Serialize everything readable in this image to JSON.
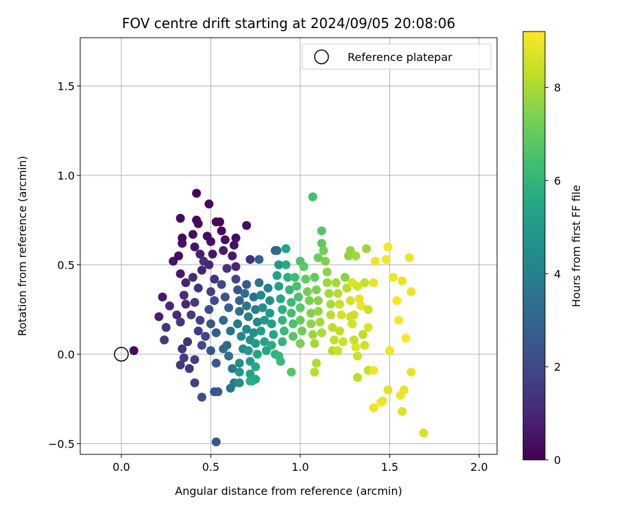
{
  "chart_data": {
    "type": "scatter",
    "title": "FOV centre drift starting at 2024/09/05 20:08:06",
    "xlabel": "Angular distance from reference (arcmin)",
    "ylabel": "Rotation from reference (arcmin)",
    "xlim": [
      -0.23,
      2.1
    ],
    "ylim": [
      -0.56,
      1.77
    ],
    "xticks": [
      0.0,
      0.5,
      1.0,
      1.5,
      2.0
    ],
    "xtick_labels": [
      "0.0",
      "0.5",
      "1.0",
      "1.5",
      "2.0"
    ],
    "yticks": [
      -0.5,
      0.0,
      0.5,
      1.0,
      1.5
    ],
    "ytick_labels": [
      "−0.5",
      "0.0",
      "0.5",
      "1.0",
      "1.5"
    ],
    "grid": true,
    "legend": {
      "location": "top-right",
      "entries": [
        {
          "label": "Reference platepar",
          "marker": "open-circle",
          "x": 0.0,
          "y": 0.0
        }
      ]
    },
    "colorbar": {
      "label": "Hours from first FF file",
      "colormap": "viridis",
      "range": [
        0,
        9.2
      ],
      "ticks": [
        0,
        2,
        4,
        6,
        8
      ],
      "tick_labels": [
        "0",
        "2",
        "4",
        "6",
        "8"
      ]
    },
    "points_format": [
      "x",
      "y",
      "hours"
    ],
    "points": [
      [
        0.07,
        0.02,
        0.3
      ],
      [
        0.23,
        0.32,
        0.6
      ],
      [
        0.21,
        0.21,
        0.8
      ],
      [
        0.25,
        0.15,
        1.4
      ],
      [
        0.24,
        0.08,
        1.6
      ],
      [
        0.27,
        0.27,
        1.0
      ],
      [
        0.29,
        0.52,
        0.5
      ],
      [
        0.33,
        0.76,
        0.3
      ],
      [
        0.34,
        0.65,
        0.2
      ],
      [
        0.34,
        0.62,
        0.4
      ],
      [
        0.32,
        0.55,
        0.3
      ],
      [
        0.33,
        0.45,
        0.6
      ],
      [
        0.36,
        0.4,
        0.9
      ],
      [
        0.35,
        0.33,
        1.2
      ],
      [
        0.36,
        0.28,
        1.0
      ],
      [
        0.31,
        0.22,
        1.1
      ],
      [
        0.33,
        0.18,
        1.5
      ],
      [
        0.34,
        0.03,
        1.4
      ],
      [
        0.33,
        -0.06,
        1.5
      ],
      [
        0.35,
        -0.02,
        1.6
      ],
      [
        0.37,
        0.07,
        1.3
      ],
      [
        0.38,
        -0.08,
        1.5
      ],
      [
        0.41,
        -0.16,
        1.7
      ],
      [
        0.42,
        0.9,
        0.1
      ],
      [
        0.42,
        0.75,
        0.2
      ],
      [
        0.43,
        0.73,
        0.3
      ],
      [
        0.4,
        0.67,
        0.4
      ],
      [
        0.41,
        0.6,
        0.5
      ],
      [
        0.44,
        0.56,
        0.8
      ],
      [
        0.46,
        0.52,
        1.2
      ],
      [
        0.45,
        0.47,
        0.9
      ],
      [
        0.4,
        0.43,
        1.1
      ],
      [
        0.43,
        0.37,
        1.3
      ],
      [
        0.41,
        0.29,
        1.5
      ],
      [
        0.39,
        0.22,
        1.6
      ],
      [
        0.44,
        0.19,
        1.8
      ],
      [
        0.43,
        0.13,
        1.6
      ],
      [
        0.45,
        0.05,
        2.0
      ],
      [
        0.41,
        -0.03,
        1.7
      ],
      [
        0.47,
        0.1,
        1.9
      ],
      [
        0.49,
        0.84,
        0.2
      ],
      [
        0.48,
        0.66,
        0.3
      ],
      [
        0.5,
        0.63,
        0.4
      ],
      [
        0.51,
        0.56,
        0.6
      ],
      [
        0.49,
        0.5,
        1.0
      ],
      [
        0.52,
        0.42,
        1.4
      ],
      [
        0.5,
        0.35,
        1.8
      ],
      [
        0.52,
        0.3,
        2.1
      ],
      [
        0.49,
        0.25,
        2.2
      ],
      [
        0.5,
        0.17,
        2.4
      ],
      [
        0.53,
        0.12,
        2.6
      ],
      [
        0.5,
        0.02,
        2.3
      ],
      [
        0.53,
        -0.05,
        2.5
      ],
      [
        0.52,
        -0.21,
        2.4
      ],
      [
        0.54,
        -0.21,
        2.6
      ],
      [
        0.45,
        -0.24,
        2.2
      ],
      [
        0.53,
        -0.49,
        2.5
      ],
      [
        0.53,
        0.74,
        0.2
      ],
      [
        0.55,
        0.74,
        0.2
      ],
      [
        0.56,
        0.69,
        0.3
      ],
      [
        0.58,
        0.64,
        0.4
      ],
      [
        0.57,
        0.58,
        0.7
      ],
      [
        0.59,
        0.48,
        1.4
      ],
      [
        0.56,
        0.39,
        2.0
      ],
      [
        0.58,
        0.32,
        2.4
      ],
      [
        0.6,
        0.26,
        2.8
      ],
      [
        0.57,
        0.19,
        3.1
      ],
      [
        0.61,
        0.13,
        3.4
      ],
      [
        0.59,
        0.05,
        3.0
      ],
      [
        0.57,
        0.03,
        3.2
      ],
      [
        0.6,
        -0.01,
        3.3
      ],
      [
        0.62,
        -0.08,
        3.6
      ],
      [
        0.63,
        -0.16,
        3.8
      ],
      [
        0.61,
        -0.19,
        3.5
      ],
      [
        0.64,
        0.65,
        0.3
      ],
      [
        0.63,
        0.61,
        0.4
      ],
      [
        0.62,
        0.55,
        0.6
      ],
      [
        0.64,
        0.49,
        1.0
      ],
      [
        0.64,
        0.42,
        1.9
      ],
      [
        0.65,
        0.36,
        2.5
      ],
      [
        0.66,
        0.3,
        3.0
      ],
      [
        0.66,
        0.24,
        3.4
      ],
      [
        0.65,
        0.17,
        3.8
      ],
      [
        0.67,
        0.1,
        4.2
      ],
      [
        0.68,
        0.03,
        4.4
      ],
      [
        0.66,
        -0.05,
        4.6
      ],
      [
        0.66,
        -0.1,
        4.8
      ],
      [
        0.66,
        -0.16,
        4.5
      ],
      [
        0.69,
        0.34,
        3.3
      ],
      [
        0.7,
        0.27,
        3.6
      ],
      [
        0.71,
        0.21,
        4.0
      ],
      [
        0.7,
        0.14,
        4.3
      ],
      [
        0.72,
        0.08,
        4.6
      ],
      [
        0.71,
        0.02,
        4.9
      ],
      [
        0.72,
        -0.04,
        5.1
      ],
      [
        0.72,
        -0.11,
        5.3
      ],
      [
        0.73,
        -0.15,
        5.5
      ],
      [
        0.7,
        0.72,
        0.4
      ],
      [
        0.72,
        0.53,
        1.2
      ],
      [
        0.7,
        0.39,
        2.6
      ],
      [
        0.74,
        0.32,
        3.4
      ],
      [
        0.75,
        0.25,
        3.9
      ],
      [
        0.76,
        0.18,
        4.2
      ],
      [
        0.74,
        0.12,
        4.6
      ],
      [
        0.75,
        0.06,
        5.0
      ],
      [
        0.76,
        0.0,
        5.4
      ],
      [
        0.75,
        -0.07,
        5.6
      ],
      [
        0.72,
        -0.15,
        5.8
      ],
      [
        0.75,
        -0.14,
        5.6
      ],
      [
        0.77,
        0.53,
        2.9
      ],
      [
        0.77,
        0.4,
        3.6
      ],
      [
        0.78,
        0.33,
        4.3
      ],
      [
        0.79,
        0.26,
        4.6
      ],
      [
        0.8,
        0.19,
        4.9
      ],
      [
        0.78,
        0.13,
        5.2
      ],
      [
        0.8,
        0.07,
        5.3
      ],
      [
        0.81,
        0.02,
        5.5
      ],
      [
        0.82,
        0.37,
        4.0
      ],
      [
        0.83,
        0.3,
        4.5
      ],
      [
        0.83,
        0.23,
        4.9
      ],
      [
        0.84,
        0.17,
        5.2
      ],
      [
        0.85,
        0.11,
        5.5
      ],
      [
        0.84,
        0.05,
        5.7
      ],
      [
        0.86,
        0.0,
        5.9
      ],
      [
        0.86,
        0.58,
        2.8
      ],
      [
        0.87,
        0.58,
        3.2
      ],
      [
        0.88,
        0.5,
        5.0
      ],
      [
        0.87,
        0.44,
        5.3
      ],
      [
        0.88,
        0.38,
        5.2
      ],
      [
        0.89,
        0.31,
        5.5
      ],
      [
        0.9,
        0.25,
        5.8
      ],
      [
        0.9,
        0.19,
        6.0
      ],
      [
        0.91,
        0.13,
        6.2
      ],
      [
        0.9,
        0.07,
        6.0
      ],
      [
        0.88,
        -0.01,
        6.1
      ],
      [
        0.89,
        -0.04,
        6.2
      ],
      [
        0.92,
        0.59,
        5.4
      ],
      [
        0.92,
        0.5,
        5.6
      ],
      [
        0.93,
        0.43,
        5.8
      ],
      [
        0.94,
        0.36,
        6.0
      ],
      [
        0.95,
        0.29,
        6.2
      ],
      [
        0.95,
        0.23,
        6.4
      ],
      [
        0.96,
        0.17,
        6.5
      ],
      [
        0.96,
        0.1,
        6.7
      ],
      [
        0.97,
        0.43,
        6.3
      ],
      [
        0.98,
        0.38,
        6.5
      ],
      [
        0.99,
        0.32,
        6.6
      ],
      [
        1.0,
        0.26,
        6.8
      ],
      [
        1.0,
        0.19,
        7.0
      ],
      [
        1.01,
        0.13,
        7.1
      ],
      [
        1.0,
        0.06,
        7.3
      ],
      [
        0.95,
        -0.1,
        6.8
      ],
      [
        1.0,
        0.52,
        6.6
      ],
      [
        1.02,
        0.49,
        6.8
      ],
      [
        1.03,
        0.42,
        7.0
      ],
      [
        1.04,
        0.35,
        7.2
      ],
      [
        1.05,
        0.3,
        7.3
      ],
      [
        1.06,
        0.23,
        7.4
      ],
      [
        1.06,
        0.17,
        7.6
      ],
      [
        1.07,
        0.11,
        7.8
      ],
      [
        1.08,
        0.06,
        7.9
      ],
      [
        1.07,
        0.88,
        6.4
      ],
      [
        1.08,
        0.43,
        6.9
      ],
      [
        1.09,
        0.36,
        7.3
      ],
      [
        1.1,
        0.3,
        7.5
      ],
      [
        1.1,
        0.24,
        7.7
      ],
      [
        1.11,
        0.18,
        7.9
      ],
      [
        1.12,
        0.12,
        8.0
      ],
      [
        1.09,
        -0.05,
        8.1
      ],
      [
        1.08,
        -0.1,
        8.2
      ],
      [
        1.1,
        0.54,
        7.1
      ],
      [
        1.12,
        0.62,
        6.9
      ],
      [
        1.12,
        0.69,
        6.7
      ],
      [
        1.13,
        0.58,
        7.2
      ],
      [
        1.14,
        0.52,
        7.4
      ],
      [
        1.15,
        0.46,
        7.6
      ],
      [
        1.15,
        0.4,
        7.8
      ],
      [
        1.16,
        0.34,
        7.9
      ],
      [
        1.17,
        0.28,
        8.0
      ],
      [
        1.17,
        0.22,
        8.2
      ],
      [
        1.18,
        0.15,
        8.3
      ],
      [
        1.19,
        0.08,
        8.4
      ],
      [
        1.18,
        0.02,
        8.1
      ],
      [
        1.21,
        0.02,
        8.5
      ],
      [
        1.2,
        0.4,
        7.9
      ],
      [
        1.21,
        0.34,
        8.2
      ],
      [
        1.22,
        0.28,
        8.4
      ],
      [
        1.23,
        0.22,
        8.6
      ],
      [
        1.22,
        0.13,
        8.3
      ],
      [
        1.24,
        0.07,
        8.5
      ],
      [
        1.25,
        0.43,
        7.5
      ],
      [
        1.26,
        0.37,
        8.2
      ],
      [
        1.27,
        0.55,
        7.6
      ],
      [
        1.28,
        0.58,
        7.7
      ],
      [
        1.29,
        0.4,
        8.7
      ],
      [
        1.28,
        0.3,
        8.6
      ],
      [
        1.28,
        0.21,
        8.5
      ],
      [
        1.29,
        0.17,
        8.6
      ],
      [
        1.3,
        0.08,
        8.4
      ],
      [
        1.3,
        0.22,
        8.5
      ],
      [
        1.31,
        0.04,
        8.7
      ],
      [
        1.32,
        0.38,
        8.6
      ],
      [
        1.31,
        0.55,
        7.9
      ],
      [
        1.32,
        -0.01,
        8.5
      ],
      [
        1.32,
        -0.13,
        8.3
      ],
      [
        1.33,
        0.31,
        8.9
      ],
      [
        1.34,
        0.27,
        8.9
      ],
      [
        1.35,
        0.11,
        8.3
      ],
      [
        1.36,
        0.4,
        8.4
      ],
      [
        1.36,
        0.05,
        8.5
      ],
      [
        1.37,
        0.59,
        7.8
      ],
      [
        1.38,
        0.25,
        8.5
      ],
      [
        1.38,
        0.15,
        8.7
      ],
      [
        1.38,
        -0.09,
        8.4
      ],
      [
        1.41,
        -0.09,
        9.0
      ],
      [
        1.41,
        0.4,
        8.9
      ],
      [
        1.41,
        -0.3,
        9.0
      ],
      [
        1.42,
        0.52,
        9.0
      ],
      [
        1.45,
        -0.27,
        9.1
      ],
      [
        1.46,
        -0.26,
        9.0
      ],
      [
        1.48,
        0.53,
        9.0
      ],
      [
        1.49,
        0.6,
        9.1
      ],
      [
        1.49,
        -0.2,
        8.8
      ],
      [
        1.5,
        0.02,
        9.0
      ],
      [
        1.52,
        0.43,
        9.0
      ],
      [
        1.54,
        0.3,
        9.1
      ],
      [
        1.55,
        0.19,
        9.1
      ],
      [
        1.56,
        -0.23,
        9.0
      ],
      [
        1.57,
        0.41,
        8.9
      ],
      [
        1.57,
        -0.32,
        8.7
      ],
      [
        1.58,
        -0.2,
        8.9
      ],
      [
        1.59,
        0.09,
        9.2
      ],
      [
        1.61,
        0.54,
        9.0
      ],
      [
        1.62,
        -0.1,
        8.9
      ],
      [
        1.62,
        0.35,
        9.0
      ],
      [
        1.69,
        -0.44,
        8.6
      ]
    ]
  },
  "colors": {
    "grid": "#b0b0b0",
    "axes": "#000000",
    "reference_marker": "#000000"
  }
}
